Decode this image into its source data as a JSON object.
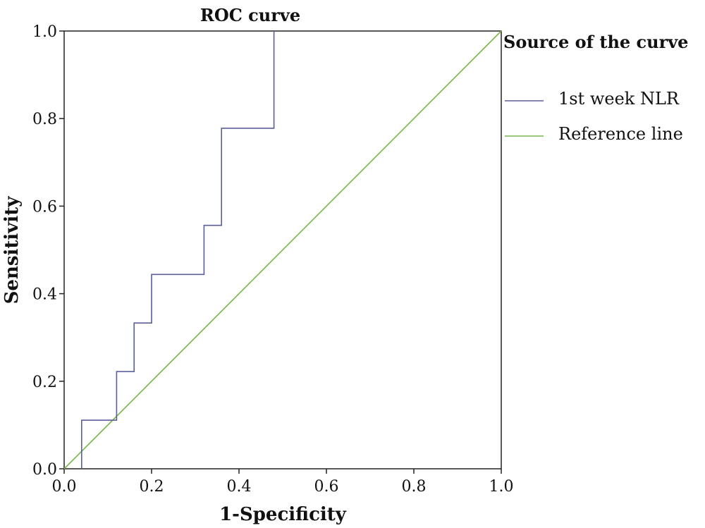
{
  "chart_data": {
    "type": "line",
    "title": "ROC curve",
    "xlabel": "1-Specificity",
    "ylabel": "Sensitivity",
    "xlim": [
      0,
      1
    ],
    "ylim": [
      0,
      1
    ],
    "x_ticks": [
      "0.0",
      "0.2",
      "0.4",
      "0.6",
      "0.8",
      "1.0"
    ],
    "y_ticks": [
      "0.0",
      "0.2",
      "0.4",
      "0.6",
      "0.8",
      "1.0"
    ],
    "grid": false,
    "legend": {
      "title": "Source of the curve",
      "position": "right"
    },
    "series": [
      {
        "name": "1st week NLR",
        "color": "#5b5f9a",
        "step": true,
        "points": [
          [
            0.04,
            0.0
          ],
          [
            0.04,
            0.111
          ],
          [
            0.12,
            0.111
          ],
          [
            0.12,
            0.222
          ],
          [
            0.16,
            0.222
          ],
          [
            0.16,
            0.333
          ],
          [
            0.2,
            0.333
          ],
          [
            0.2,
            0.444
          ],
          [
            0.32,
            0.444
          ],
          [
            0.32,
            0.556
          ],
          [
            0.36,
            0.556
          ],
          [
            0.36,
            0.778
          ],
          [
            0.48,
            0.778
          ],
          [
            0.48,
            1.0
          ]
        ]
      },
      {
        "name": "Reference line",
        "color": "#7ab648",
        "step": false,
        "points": [
          [
            0,
            0
          ],
          [
            1,
            1
          ]
        ]
      }
    ]
  }
}
